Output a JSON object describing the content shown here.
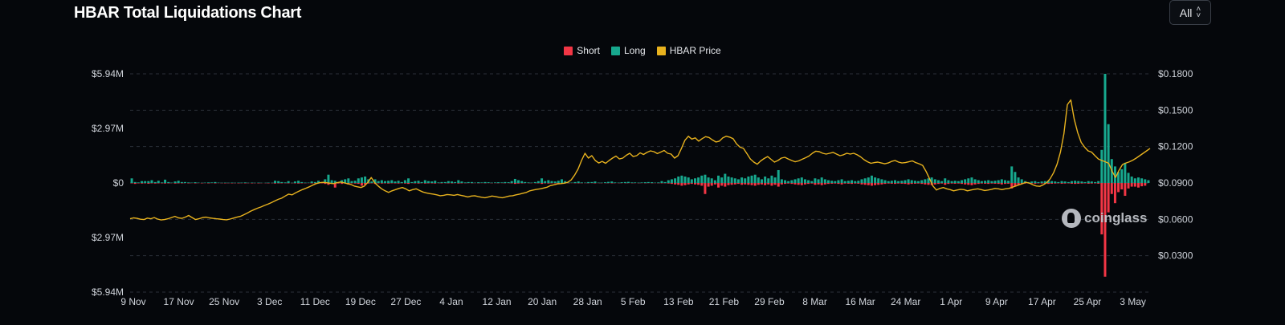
{
  "header": {
    "title": "HBAR Total Liquidations Chart",
    "range_value": "All"
  },
  "legend": [
    {
      "label": "Short",
      "color": "#f23645"
    },
    {
      "label": "Long",
      "color": "#17a88e"
    },
    {
      "label": "HBAR Price",
      "color": "#e8b21e"
    }
  ],
  "watermark": {
    "text": "coinglass"
  },
  "chart_data": {
    "type": "bar",
    "left_axis": {
      "ticks": [
        "$5.94M",
        "$2.97M",
        "$0",
        "$2.97M",
        "$5.94M"
      ],
      "range_millions": [
        -5.94,
        5.94
      ]
    },
    "right_axis": {
      "ticks": [
        "$0.1800",
        "$0.1500",
        "$0.1200",
        "$0.0900",
        "$0.0600",
        "$0.0300"
      ],
      "range": [
        0.0,
        0.18
      ]
    },
    "x_ticks": [
      "9 Nov",
      "17 Nov",
      "25 Nov",
      "3 Dec",
      "11 Dec",
      "19 Dec",
      "27 Dec",
      "4 Jan",
      "12 Jan",
      "20 Jan",
      "28 Jan",
      "5 Feb",
      "13 Feb",
      "21 Feb",
      "29 Feb",
      "8 Mar",
      "16 Mar",
      "24 Mar",
      "1 Apr",
      "9 Apr",
      "17 Apr",
      "25 Apr",
      "3 May"
    ],
    "grid": "dashed-horizontal",
    "legend_position": "top-center",
    "series": [
      {
        "name": "Long",
        "color": "#17a88e",
        "values": [
          0.25,
          0.05,
          0.03,
          0.1,
          0.1,
          0.1,
          0.15,
          0.05,
          0.12,
          0.03,
          0.18,
          0.05,
          0.02,
          0.08,
          0.12,
          0.05,
          0.05,
          0.03,
          0.02,
          0.04,
          0.02,
          0.01,
          0.02,
          0.03,
          0.03,
          0.05,
          0.02,
          0.01,
          0.02,
          0.01,
          0.02,
          0.01,
          0.02,
          0.02,
          0.03,
          0.01,
          0.02,
          0.01,
          0.02,
          0.01,
          0.01,
          0.02,
          0.01,
          0.12,
          0.1,
          0.05,
          0.03,
          0.1,
          0.01,
          0.08,
          0.12,
          0.05,
          0.02,
          0.02,
          0.08,
          0.05,
          0.12,
          0.05,
          0.2,
          0.45,
          0.15,
          0.12,
          0.05,
          0.15,
          0.2,
          0.25,
          0.1,
          0.12,
          0.25,
          0.3,
          0.35,
          0.2,
          0.08,
          0.2,
          0.1,
          0.15,
          0.1,
          0.12,
          0.15,
          0.08,
          0.12,
          0.05,
          0.15,
          0.25,
          0.05,
          0.1,
          0.12,
          0.05,
          0.15,
          0.1,
          0.08,
          0.12,
          0.03,
          0.05,
          0.05,
          0.1,
          0.08,
          0.05,
          0.15,
          0.08,
          0.03,
          0.05,
          0.05,
          0.02,
          0.04,
          0.03,
          0.05,
          0.04,
          0.02,
          0.03,
          0.04,
          0.03,
          0.05,
          0.04,
          0.1,
          0.22,
          0.15,
          0.1,
          0.05,
          0.03,
          0.02,
          0.05,
          0.1,
          0.25,
          0.1,
          0.15,
          0.1,
          0.08,
          0.12,
          0.2,
          0.1,
          0.02,
          0.02,
          0.05,
          0.08,
          0.03,
          0.02,
          0.05,
          0.05,
          0.08,
          0.02,
          0.02,
          0.04,
          0.06,
          0.08,
          0.03,
          0.02,
          0.04,
          0.05,
          0.06,
          0.03,
          0.03,
          0.02,
          0.03,
          0.04,
          0.05,
          0.04,
          0.02,
          0.03,
          0.1,
          0.05,
          0.15,
          0.2,
          0.25,
          0.35,
          0.4,
          0.35,
          0.3,
          0.2,
          0.25,
          0.3,
          0.4,
          0.45,
          0.3,
          0.25,
          0.15,
          0.4,
          0.3,
          0.5,
          0.35,
          0.3,
          0.25,
          0.2,
          0.3,
          0.25,
          0.35,
          0.4,
          0.45,
          0.3,
          0.2,
          0.35,
          0.25,
          0.4,
          0.3,
          0.7,
          0.2,
          0.15,
          0.1,
          0.15,
          0.2,
          0.25,
          0.3,
          0.2,
          0.15,
          0.1,
          0.25,
          0.2,
          0.3,
          0.2,
          0.15,
          0.12,
          0.1,
          0.15,
          0.2,
          0.1,
          0.12,
          0.15,
          0.1,
          0.12,
          0.2,
          0.25,
          0.3,
          0.4,
          0.3,
          0.25,
          0.2,
          0.15,
          0.1,
          0.12,
          0.15,
          0.1,
          0.12,
          0.15,
          0.2,
          0.15,
          0.12,
          0.1,
          0.15,
          0.2,
          0.25,
          0.3,
          0.2,
          0.15,
          0.1,
          0.25,
          0.15,
          0.1,
          0.12,
          0.1,
          0.15,
          0.2,
          0.25,
          0.3,
          0.2,
          0.15,
          0.1,
          0.12,
          0.15,
          0.1,
          0.12,
          0.15,
          0.2,
          0.15,
          0.12,
          0.9,
          0.6,
          0.3,
          0.2,
          0.1,
          0.05,
          0.08,
          0.1,
          0.05,
          0.08,
          0.1,
          0.12,
          0.1,
          0.08,
          0.05,
          0.1,
          0.08,
          0.05,
          0.1,
          0.12,
          0.1,
          0.08,
          0.05,
          0.1,
          0.08,
          0.05,
          0.1,
          1.8,
          5.94,
          3.2,
          1.3,
          0.9,
          0.6,
          0.75,
          1.1,
          0.55,
          0.35,
          0.25,
          0.3,
          0.25,
          0.2,
          0.15
        ]
      },
      {
        "name": "Short",
        "color": "#f23645",
        "values": [
          0.02,
          0.05,
          0.02,
          0.03,
          0.02,
          0.04,
          0.02,
          0.03,
          0.02,
          0.02,
          0.03,
          0.02,
          0.01,
          0.03,
          0.02,
          0.02,
          0.01,
          0.02,
          0.01,
          0.02,
          0.01,
          0.02,
          0.01,
          0.02,
          0.01,
          0.02,
          0.01,
          0.01,
          0.02,
          0.01,
          0.02,
          0.01,
          0.02,
          0.01,
          0.02,
          0.01,
          0.02,
          0.01,
          0.02,
          0.01,
          0.01,
          0.02,
          0.01,
          0.03,
          0.02,
          0.02,
          0.01,
          0.02,
          0.01,
          0.02,
          0.03,
          0.02,
          0.01,
          0.01,
          0.02,
          0.02,
          0.03,
          0.02,
          0.05,
          0.1,
          0.05,
          0.25,
          0.03,
          0.05,
          0.02,
          0.08,
          0.02,
          0.03,
          0.05,
          0.15,
          0.1,
          0.03,
          0.02,
          0.05,
          0.02,
          0.03,
          0.02,
          0.03,
          0.02,
          0.02,
          0.03,
          0.01,
          0.03,
          0.05,
          0.01,
          0.02,
          0.03,
          0.01,
          0.03,
          0.02,
          0.02,
          0.03,
          0.01,
          0.02,
          0.01,
          0.02,
          0.02,
          0.01,
          0.03,
          0.02,
          0.01,
          0.01,
          0.01,
          0.01,
          0.01,
          0.01,
          0.01,
          0.01,
          0.01,
          0.01,
          0.01,
          0.01,
          0.01,
          0.01,
          0.02,
          0.05,
          0.03,
          0.02,
          0.01,
          0.01,
          0.01,
          0.01,
          0.02,
          0.05,
          0.02,
          0.03,
          0.02,
          0.02,
          0.03,
          0.04,
          0.02,
          0.01,
          0.01,
          0.01,
          0.02,
          0.01,
          0.01,
          0.01,
          0.01,
          0.02,
          0.01,
          0.01,
          0.01,
          0.01,
          0.02,
          0.01,
          0.01,
          0.01,
          0.01,
          0.01,
          0.01,
          0.01,
          0.01,
          0.01,
          0.01,
          0.01,
          0.01,
          0.01,
          0.01,
          0.02,
          0.01,
          0.03,
          0.05,
          0.08,
          0.1,
          0.15,
          0.12,
          0.08,
          0.05,
          0.08,
          0.1,
          0.15,
          0.6,
          0.2,
          0.15,
          0.08,
          0.25,
          0.15,
          0.2,
          0.12,
          0.1,
          0.08,
          0.05,
          0.1,
          0.08,
          0.1,
          0.12,
          0.15,
          0.1,
          0.08,
          0.12,
          0.08,
          0.15,
          0.1,
          0.2,
          0.08,
          0.05,
          0.03,
          0.05,
          0.08,
          0.1,
          0.12,
          0.08,
          0.05,
          0.03,
          0.1,
          0.08,
          0.12,
          0.08,
          0.05,
          0.04,
          0.03,
          0.05,
          0.08,
          0.03,
          0.04,
          0.05,
          0.03,
          0.04,
          0.08,
          0.1,
          0.12,
          0.15,
          0.12,
          0.1,
          0.08,
          0.05,
          0.03,
          0.04,
          0.05,
          0.03,
          0.04,
          0.05,
          0.08,
          0.05,
          0.04,
          0.03,
          0.05,
          0.08,
          0.1,
          0.12,
          0.08,
          0.05,
          0.03,
          0.1,
          0.05,
          0.03,
          0.04,
          0.03,
          0.05,
          0.08,
          0.1,
          0.12,
          0.08,
          0.05,
          0.03,
          0.04,
          0.05,
          0.03,
          0.04,
          0.05,
          0.08,
          0.05,
          0.04,
          0.3,
          0.2,
          0.1,
          0.05,
          0.03,
          0.02,
          0.03,
          0.04,
          0.02,
          0.03,
          0.04,
          0.05,
          0.04,
          0.03,
          0.02,
          0.04,
          0.03,
          0.02,
          0.04,
          0.05,
          0.04,
          0.03,
          0.02,
          0.04,
          0.03,
          0.02,
          0.04,
          2.8,
          5.1,
          1.6,
          0.6,
          1.1,
          0.5,
          0.35,
          0.7,
          0.3,
          0.2,
          0.2,
          0.25,
          0.18,
          0.15
        ]
      },
      {
        "name": "HBAR Price",
        "color": "#e8b21e",
        "values": [
          0.0605,
          0.0612,
          0.0608,
          0.0601,
          0.0598,
          0.061,
          0.0605,
          0.0615,
          0.0602,
          0.0595,
          0.0598,
          0.0605,
          0.0615,
          0.0625,
          0.0612,
          0.0608,
          0.0618,
          0.0632,
          0.0615,
          0.0598,
          0.0605,
          0.0615,
          0.0618,
          0.0612,
          0.0608,
          0.0605,
          0.0602,
          0.0598,
          0.0596,
          0.0602,
          0.061,
          0.0618,
          0.0625,
          0.0638,
          0.0652,
          0.0668,
          0.068,
          0.0692,
          0.0702,
          0.0715,
          0.0725,
          0.0738,
          0.0752,
          0.0765,
          0.0775,
          0.0792,
          0.0808,
          0.0802,
          0.0818,
          0.0832,
          0.0845,
          0.0856,
          0.0868,
          0.0882,
          0.0895,
          0.0902,
          0.0905,
          0.0902,
          0.0898,
          0.0895,
          0.0902,
          0.0908,
          0.0902,
          0.0895,
          0.0888,
          0.0875,
          0.0868,
          0.0862,
          0.0875,
          0.0905,
          0.0945,
          0.0902,
          0.0875,
          0.0852,
          0.0835,
          0.0822,
          0.0835,
          0.0845,
          0.0855,
          0.0862,
          0.0852,
          0.0835,
          0.0845,
          0.0852,
          0.0838,
          0.0825,
          0.0818,
          0.0812,
          0.0808,
          0.0802,
          0.0795,
          0.0798,
          0.0805,
          0.0802,
          0.0798,
          0.0805,
          0.0798,
          0.0792,
          0.0785,
          0.0792,
          0.0795,
          0.0788,
          0.0782,
          0.0778,
          0.0785,
          0.0792,
          0.0788,
          0.0782,
          0.0778,
          0.0785,
          0.0792,
          0.0795,
          0.0802,
          0.0808,
          0.0815,
          0.0822,
          0.0835,
          0.0842,
          0.0848,
          0.0852,
          0.0858,
          0.0865,
          0.0878,
          0.0885,
          0.0892,
          0.0895,
          0.0898,
          0.0905,
          0.0925,
          0.0965,
          0.1015,
          0.1085,
          0.1145,
          0.1105,
          0.1125,
          0.1085,
          0.1065,
          0.1078,
          0.1062,
          0.1085,
          0.1105,
          0.1122,
          0.1098,
          0.1105,
          0.1128,
          0.1145,
          0.1118,
          0.1125,
          0.1148,
          0.1135,
          0.1152,
          0.1165,
          0.1158,
          0.1142,
          0.1155,
          0.1168,
          0.1145,
          0.1138,
          0.1105,
          0.1125,
          0.1185,
          0.1252,
          0.1285,
          0.1262,
          0.1272,
          0.1245,
          0.1265,
          0.1282,
          0.1275,
          0.1255,
          0.1238,
          0.1245,
          0.1272,
          0.1285,
          0.1278,
          0.1265,
          0.1222,
          0.1195,
          0.1185,
          0.1142,
          0.1098,
          0.1072,
          0.1055,
          0.1082,
          0.1102,
          0.1118,
          0.1095,
          0.1072,
          0.1085,
          0.1105,
          0.1112,
          0.1098,
          0.1085,
          0.1075,
          0.1082,
          0.1095,
          0.1108,
          0.1122,
          0.1145,
          0.1162,
          0.1158,
          0.1145,
          0.1138,
          0.1145,
          0.1152,
          0.1138,
          0.1125,
          0.1132,
          0.1145,
          0.1138,
          0.1145,
          0.1132,
          0.1115,
          0.1092,
          0.1075,
          0.1062,
          0.1068,
          0.1072,
          0.1065,
          0.1058,
          0.1065,
          0.1078,
          0.1085,
          0.1072,
          0.1065,
          0.1068,
          0.1075,
          0.1082,
          0.1068,
          0.1058,
          0.1045,
          0.0995,
          0.0935,
          0.0875,
          0.0842,
          0.0855,
          0.0862,
          0.0852,
          0.0845,
          0.0835,
          0.0842,
          0.0848,
          0.0845,
          0.0835,
          0.0842,
          0.0848,
          0.0852,
          0.0845,
          0.0838,
          0.0842,
          0.0848,
          0.0855,
          0.0852,
          0.0845,
          0.0852,
          0.0855,
          0.0865,
          0.0875,
          0.0885,
          0.0895,
          0.0905,
          0.0898,
          0.0885,
          0.0875,
          0.0872,
          0.0885,
          0.0902,
          0.0935,
          0.0985,
          0.1055,
          0.1155,
          0.1305,
          0.1545,
          0.1585,
          0.1425,
          0.1315,
          0.1235,
          0.1195,
          0.1165,
          0.1155,
          0.1125,
          0.1098,
          0.1085,
          0.1075,
          0.1062,
          0.0995,
          0.0945,
          0.1005,
          0.1052,
          0.1065,
          0.1075,
          0.1088,
          0.1105,
          0.1125,
          0.1145,
          0.1165,
          0.1185
        ]
      }
    ]
  }
}
